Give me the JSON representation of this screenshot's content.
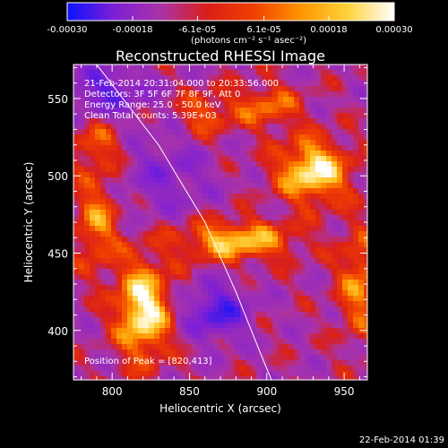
{
  "chart_data": {
    "type": "heatmap",
    "title": "Reconstructed RHESSI Image",
    "xlabel": "Heliocentric X (arcsec)",
    "ylabel": "Heliocentric Y (arcsec)",
    "xlim": [
      775,
      965
    ],
    "ylim": [
      368,
      572
    ],
    "xticks": [
      800,
      850,
      900,
      950
    ],
    "yticks": [
      400,
      450,
      500,
      550
    ],
    "colorbar": {
      "unit_label": "(photons cm⁻² s⁻¹ asec⁻²)",
      "range": [
        -0.0003,
        0.0003
      ],
      "tick_labels": [
        "-0.00030",
        "-0.00018",
        "-6.1e-05",
        "6.1e-05",
        "0.00018",
        "0.00030"
      ],
      "tick_values": [
        -0.0003,
        -0.00018,
        -6.1e-05,
        6.1e-05,
        0.00018,
        0.0003
      ],
      "colors": [
        "#0a12ff",
        "#7d1fd6",
        "#aa33a8",
        "#d91f18",
        "#f04000",
        "#ff9500",
        "#ffd23a",
        "#ffffff"
      ]
    },
    "annotations": [
      "21-Feb-2014 20:31:04.000 to 20:33:56.000",
      "Detectors: 3F 5F 6F 7F 8F 9F, Att 0",
      "Energy Range: 25.0 - 50.0 keV",
      "Clean    Total counts: 5.39E+03"
    ],
    "peak_label": "Position of Peak = [820,413]",
    "peak": [
      820,
      413
    ],
    "limb_curve": [
      [
        790,
        572
      ],
      [
        830,
        520
      ],
      [
        860,
        470
      ],
      [
        880,
        425
      ],
      [
        896,
        385
      ],
      [
        903,
        368
      ]
    ],
    "sources": [
      {
        "x": 820,
        "y": 413,
        "sx": 12,
        "sy": 22,
        "amp": 1.0
      },
      {
        "x": 930,
        "y": 503,
        "sx": 16,
        "sy": 14,
        "amp": 0.95
      },
      {
        "x": 880,
        "y": 458,
        "sx": 26,
        "sy": 9,
        "amp": 0.78
      },
      {
        "x": 790,
        "y": 470,
        "sx": 10,
        "sy": 22,
        "amp": 0.55
      },
      {
        "x": 960,
        "y": 430,
        "sx": 10,
        "sy": 25,
        "amp": 0.55
      },
      {
        "x": 900,
        "y": 545,
        "sx": 15,
        "sy": 10,
        "amp": 0.5
      },
      {
        "x": 860,
        "y": 540,
        "sx": 12,
        "sy": 10,
        "amp": 0.45
      },
      {
        "x": 790,
        "y": 520,
        "sx": 12,
        "sy": 12,
        "amp": 0.4
      }
    ],
    "negatives": [
      {
        "x": 868,
        "y": 412,
        "sx": 14,
        "sy": 12,
        "amp": -0.7
      },
      {
        "x": 795,
        "y": 555,
        "sx": 18,
        "sy": 12,
        "amp": -0.55
      },
      {
        "x": 835,
        "y": 500,
        "sx": 20,
        "sy": 18,
        "amp": -0.35
      }
    ]
  },
  "footer": {
    "timestamp": "22-Feb-2014 01:39"
  }
}
